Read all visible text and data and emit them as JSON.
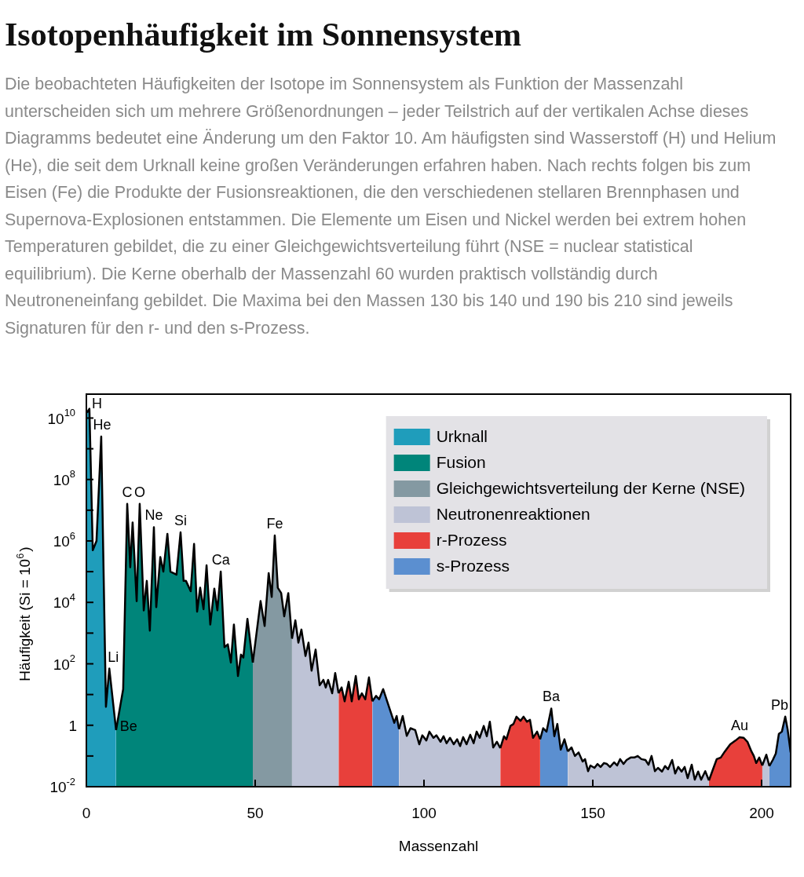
{
  "chart_data": {
    "type": "area",
    "title": "Isotopenhäufigkeit im Sonnensystem",
    "subtitle": "Die beobachteten Häufigkeiten der Isotope im Sonnensystem als Funktion der Massenzahl unterscheiden sich um mehrere Größenordnungen – jeder Teilstrich auf der vertikalen Achse dieses Diagramms bedeutet eine Änderung um den Faktor 10. Am häufigsten sind Wasserstoff (H) und Helium (He), die seit dem Urknall keine großen Veränderungen erfahren haben. Nach rechts folgen bis zum Eisen (Fe) die Produkte der Fusionsreaktionen, die den verschiedenen stellaren Brennphasen und Supernova-Explosionen entstammen. Die Elemente um Eisen und Nickel werden bei extrem hohen Temperaturen gebildet, die zu einer Gleichgewichtsverteilung führt (NSE = nuclear statistical equilibrium). Die Kerne oberhalb der Massenzahl 60 wurden praktisch vollständig durch Neutroneneinfang gebildet. Die Maxima bei den Massen 130 bis 140 und 190 bis 210 sind jeweils Signaturen für den r- und den s-Prozess.",
    "xlabel": "Massenzahl",
    "ylabel": "Häufigkeit (Si = 10$^{6}$)",
    "xlim": [
      0,
      208.6
    ],
    "xticks": [
      0,
      50,
      100,
      150,
      200
    ],
    "ylim": [
      0.01,
      60000000000.0
    ],
    "log": "y",
    "yticks": [
      {
        "value": 0.01,
        "label": "10$^{-2}$"
      },
      {
        "value": 0.1,
        "label": null
      },
      {
        "value": 1,
        "label": "1"
      },
      {
        "value": 10,
        "label": null
      },
      {
        "value": 100,
        "label": "10$^{2}$"
      },
      {
        "value": 1000,
        "label": null
      },
      {
        "value": 10000,
        "label": "10$^{4}$"
      },
      {
        "value": 100000,
        "label": null
      },
      {
        "value": 1000000,
        "label": "10$^{6}$"
      },
      {
        "value": 10000000.0,
        "label": null
      },
      {
        "value": 100000000.0,
        "label": "10$^{8}$"
      },
      {
        "value": 1000000000.0,
        "label": null
      },
      {
        "value": 10000000000.0,
        "label": "10$^{10}$"
      }
    ],
    "legend": "top right",
    "series": [
      {
        "name": "Urknall",
        "color": "#1f9dbb",
        "x": [
          0.2,
          0.9,
          1.9,
          3,
          4.4,
          5.8,
          6.8,
          8.8
        ],
        "values": [
          15000000000.0,
          20000000000.0,
          500000.0,
          1000000.0,
          2500000000.0,
          4,
          70,
          0.7
        ]
      },
      {
        "name": "Fusion",
        "color": "#00857a",
        "x": [
          8.8,
          10.9,
          12.1,
          13,
          13.7,
          14.9,
          15.8,
          17,
          17.9,
          18.8,
          20,
          20.7,
          21.9,
          22.8,
          24,
          24.9,
          26.7,
          27.9,
          28.8,
          29.5,
          30.9,
          31.9,
          32.8,
          33.7,
          34.7,
          35.6,
          36.7,
          37.9,
          38.8,
          39.8,
          40.9,
          41.9,
          42.8,
          43.7,
          44.9,
          45.8,
          46.5,
          47.7,
          49.3
        ],
        "values": [
          0.7,
          15,
          16000000.0,
          140000.0,
          4000000.0,
          11000.0,
          16000000.0,
          5500,
          50000.0,
          1200,
          2800000.0,
          7000,
          300000.0,
          100000.0,
          1700000.0,
          100000.0,
          80000.0,
          1900000.0,
          50000.0,
          50000.0,
          23000.0,
          800000.0,
          5000,
          30000.0,
          6000,
          160000.0,
          1900,
          28000.0,
          5500,
          100000.0,
          350,
          430,
          110,
          1900,
          40,
          200,
          160,
          2900,
          110
        ]
      },
      {
        "name": "Gleichgewichtsverteilung der Kerne (NSE)",
        "color": "#8499a2",
        "x": [
          49.3,
          51.6,
          52.8,
          54,
          54.9,
          55.8,
          56.7,
          57.7,
          58.6,
          59.8,
          60.9
        ],
        "values": [
          110,
          11000.0,
          1700,
          90000.0,
          15000.0,
          1500000.0,
          30000.0,
          20000.0,
          3500,
          20000.0,
          660
        ]
      },
      {
        "name": "Neutronenreaktionen",
        "color": "#bec3d6",
        "x": [
          60.9,
          61.9,
          62.8,
          63.7,
          64.9,
          65.8,
          66.7,
          67.9,
          69.1,
          70.2,
          70.9,
          71.6,
          72.8,
          73.7,
          74.7
        ],
        "values": [
          660,
          2600,
          490,
          1300,
          180,
          490,
          60,
          290,
          20,
          30,
          17,
          30,
          11,
          50,
          11
        ]
      },
      {
        "name": "r-Prozess",
        "color": "#e8403b",
        "x": [
          74.7,
          75.6,
          76.5,
          77.7,
          78.6,
          79.8,
          80.7,
          81.6,
          82.6,
          83.7,
          84.7
        ],
        "values": [
          11,
          17,
          6,
          26,
          6,
          40,
          7,
          11,
          7,
          36,
          6
        ]
      },
      {
        "name": "s-Prozess",
        "color": "#5b8fd0",
        "x": [
          84.7,
          85.8,
          86.7,
          87.9,
          89.1,
          91.2,
          91.9,
          92.6
        ],
        "values": [
          6,
          9,
          7,
          15,
          6,
          1.2,
          2,
          0.75
        ]
      },
      {
        "color": "#bec3d6",
        "x": [
          92.6,
          93.7,
          94.9,
          96,
          97.4,
          98.6,
          99.5,
          100.7,
          101.6,
          102.8,
          103.7,
          104.9,
          105.8,
          106.7,
          107.7,
          108.8,
          109.8,
          110.7,
          111.6,
          112.6,
          113.7,
          114.7,
          115.6,
          116.5,
          117.7,
          118.6,
          119.5,
          120.5,
          121.6,
          122.6
        ],
        "values": [
          0.75,
          2,
          0.45,
          0.8,
          0.7,
          0.24,
          0.47,
          0.32,
          0.62,
          0.39,
          0.47,
          0.29,
          0.44,
          0.26,
          0.39,
          0.24,
          0.35,
          0.21,
          0.41,
          0.24,
          0.49,
          0.26,
          0.62,
          0.39,
          0.95,
          0.44,
          1.3,
          0.19,
          0.29,
          0.18
        ]
      },
      {
        "color": "#e8403b",
        "x": [
          122.6,
          123.7,
          124.4,
          125.6,
          126.5,
          127.4,
          128.6,
          129.5,
          130.5,
          131.4,
          132.3,
          133.5,
          134.4
        ],
        "values": [
          0.18,
          0.44,
          0.35,
          0.95,
          1.1,
          1.9,
          1.4,
          1.9,
          1.3,
          1.5,
          0.39,
          0.62,
          0.35
        ]
      },
      {
        "color": "#5b8fd0",
        "x": [
          134.4,
          135.3,
          136.3,
          137.7,
          138.6,
          139.5,
          140.5,
          141.6,
          142.6
        ],
        "values": [
          0.35,
          0.8,
          0.62,
          3.5,
          0.44,
          1.1,
          0.16,
          0.35,
          0.14
        ]
      },
      {
        "color": "#bec3d6",
        "x": [
          142.6,
          143.7,
          144.7,
          145.8,
          147,
          147.7,
          148.6,
          149.3,
          150.5,
          151.4,
          152.3,
          153.3,
          154.2,
          155.1,
          156.3,
          157.2,
          158.1,
          159.1,
          160,
          161.2,
          162.3,
          163.3,
          164.4,
          165.6,
          166.5,
          167.4,
          168.4,
          169.3,
          170.5,
          171.4,
          172.3,
          173.5,
          174.4,
          175.3,
          176.3,
          177.2,
          178.1,
          179.3,
          180.2,
          181.2,
          182.1,
          183.3,
          184.4
        ],
        "values": [
          0.14,
          0.19,
          0.1,
          0.13,
          0.066,
          0.079,
          0.032,
          0.049,
          0.041,
          0.055,
          0.044,
          0.059,
          0.055,
          0.044,
          0.062,
          0.049,
          0.079,
          0.055,
          0.074,
          0.089,
          0.089,
          0.1,
          0.079,
          0.074,
          0.052,
          0.1,
          0.032,
          0.041,
          0.031,
          0.047,
          0.037,
          0.074,
          0.027,
          0.044,
          0.031,
          0.044,
          0.019,
          0.052,
          0.017,
          0.031,
          0.017,
          0.032,
          0.016
        ]
      },
      {
        "color": "#e8403b",
        "x": [
          184.4,
          185.6,
          186.7,
          187.9,
          189.1,
          190.7,
          192.3,
          193.5,
          194.7,
          195.8,
          197,
          197.7,
          198.4,
          199.3,
          200.2
        ],
        "values": [
          0.016,
          0.037,
          0.079,
          0.089,
          0.14,
          0.24,
          0.32,
          0.41,
          0.39,
          0.29,
          0.14,
          0.1,
          0.059,
          0.089,
          0.049
        ]
      },
      {
        "color": "#bec3d6",
        "x": [
          200.2,
          201.4,
          202.3
        ],
        "values": [
          0.049,
          0.11,
          0.047
        ]
      },
      {
        "color": "#5b8fd0",
        "x": [
          202.3,
          203.3,
          204.2,
          205.1,
          206,
          207,
          207.7,
          208.6
        ],
        "values": [
          0.047,
          0.074,
          0.12,
          0.52,
          0.62,
          1.9,
          0.74,
          0.13
        ]
      }
    ],
    "annotations": [
      {
        "text": "H",
        "x": 0.9,
        "y": 20000000000.0
      },
      {
        "text": "He",
        "x": 4.4,
        "y": 2500000000.0
      },
      {
        "text": "Li",
        "x": 6.8,
        "y": 70
      },
      {
        "text": "Be",
        "x": 8.8,
        "y": 0.7
      },
      {
        "text": "C",
        "x": 12.1,
        "y": 16000000.0
      },
      {
        "text": "O",
        "x": 15.8,
        "y": 16000000.0
      },
      {
        "text": "Ne",
        "x": 20,
        "y": 2800000.0
      },
      {
        "text": "Si",
        "x": 27.9,
        "y": 1900000.0
      },
      {
        "text": "Ca",
        "x": 39.8,
        "y": 100000.0
      },
      {
        "text": "Fe",
        "x": 55.8,
        "y": 1500000.0
      },
      {
        "text": "Ba",
        "x": 137.7,
        "y": 3.5
      },
      {
        "text": "Au",
        "x": 193.5,
        "y": 0.41
      },
      {
        "text": "Pb",
        "x": 207,
        "y": 1.9
      }
    ]
  }
}
